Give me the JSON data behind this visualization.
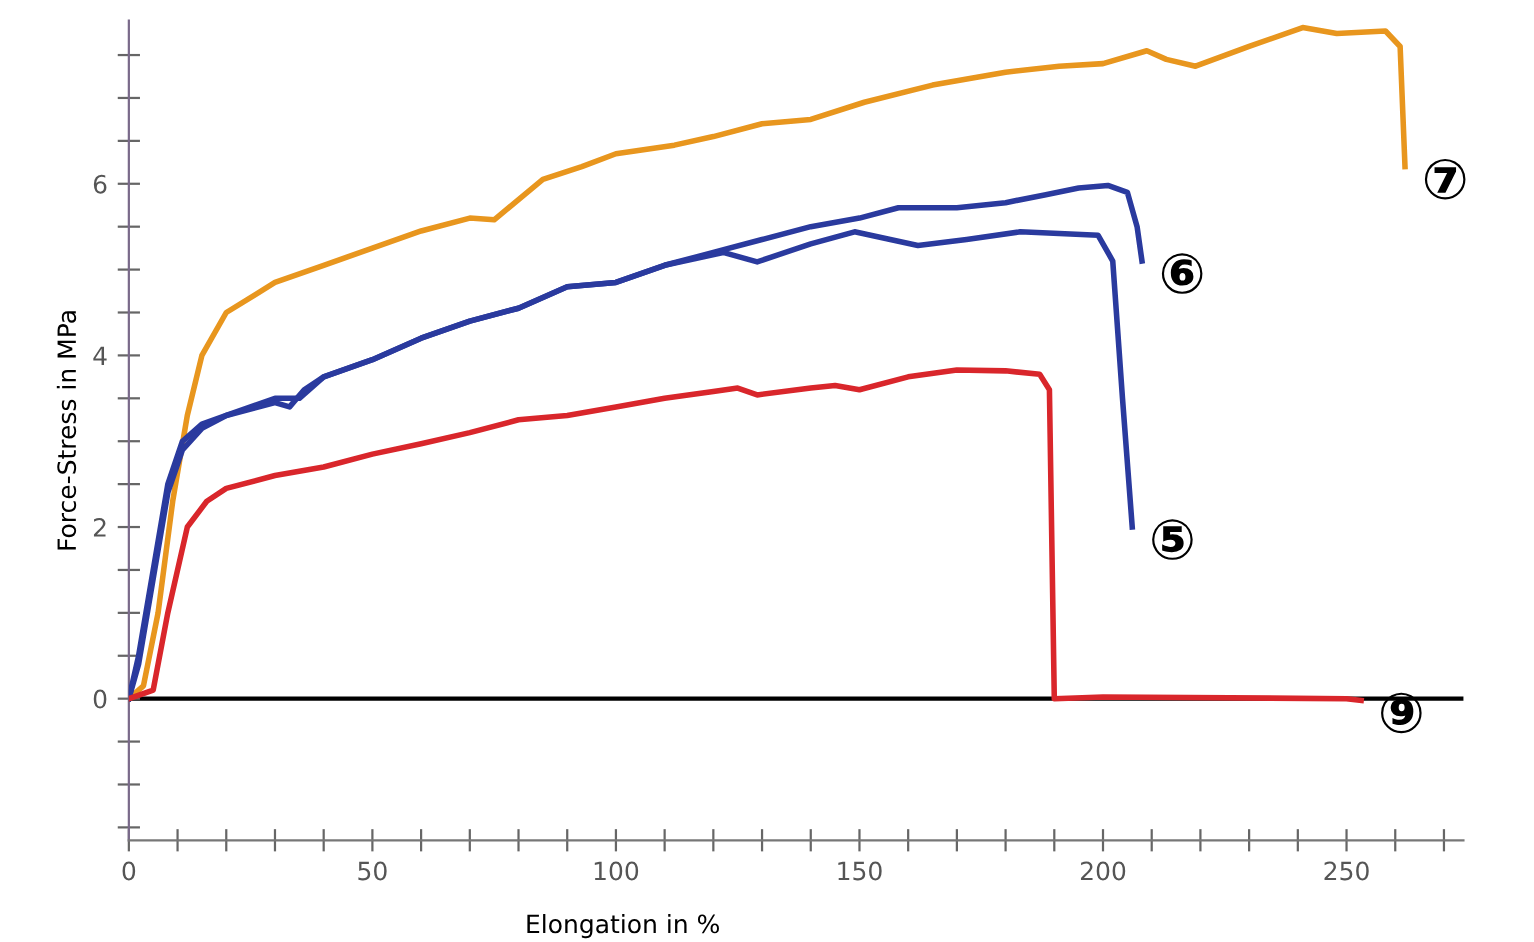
{
  "chart_data": {
    "type": "line",
    "xlabel": "Elongation in %",
    "ylabel": "Force-Stress in MPa",
    "xlim": [
      0,
      274
    ],
    "ylim": [
      -1.65,
      7.9
    ],
    "xticks": [
      0,
      {
        "value": 10,
        "label": null
      },
      {
        "value": 20,
        "label": null
      },
      {
        "value": 30,
        "label": null
      },
      {
        "value": 40,
        "label": null
      },
      50,
      {
        "value": 60,
        "label": null
      },
      {
        "value": 70,
        "label": null
      },
      {
        "value": 80,
        "label": null
      },
      {
        "value": 90,
        "label": null
      },
      100,
      {
        "value": 110,
        "label": null
      },
      {
        "value": 120,
        "label": null
      },
      {
        "value": 130,
        "label": null
      },
      {
        "value": 140,
        "label": null
      },
      150,
      {
        "value": 160,
        "label": null
      },
      {
        "value": 170,
        "label": null
      },
      {
        "value": 180,
        "label": null
      },
      {
        "value": 190,
        "label": null
      },
      200,
      {
        "value": 210,
        "label": null
      },
      {
        "value": 220,
        "label": null
      },
      {
        "value": 230,
        "label": null
      },
      {
        "value": 240,
        "label": null
      },
      250,
      {
        "value": 260,
        "label": null
      },
      {
        "value": 270,
        "label": null
      }
    ],
    "yticks": [
      {
        "value": -1.5,
        "label": null
      },
      {
        "value": -1,
        "label": null
      },
      {
        "value": -0.5,
        "label": null
      },
      0,
      {
        "value": 0.5,
        "label": null
      },
      {
        "value": 1,
        "label": null
      },
      {
        "value": 1.5,
        "label": null
      },
      2,
      {
        "value": 2.5,
        "label": null
      },
      {
        "value": 3,
        "label": null
      },
      {
        "value": 3.5,
        "label": null
      },
      4,
      {
        "value": 4.5,
        "label": null
      },
      {
        "value": 5,
        "label": null
      },
      {
        "value": 5.5,
        "label": null
      },
      6,
      {
        "value": 6.5,
        "label": null
      },
      {
        "value": 7,
        "label": null
      },
      {
        "value": 7.5,
        "label": null
      }
    ],
    "grid": false,
    "legend": false,
    "marker": "none",
    "line_style": "solid",
    "ref_lines": [
      {
        "axis": "y",
        "value": 0,
        "color": "#000000"
      }
    ],
    "series": [
      {
        "name": "⑦",
        "color": "#e8961e",
        "x": [
          0,
          3,
          6,
          9,
          12,
          15,
          20,
          30,
          40,
          50,
          60,
          70,
          75,
          85,
          93,
          100,
          112,
          120,
          130,
          140,
          151,
          165,
          180,
          191,
          200,
          209,
          213,
          219,
          230,
          241,
          248,
          258,
          261,
          262
        ],
        "values": [
          0,
          0.15,
          1.0,
          2.3,
          3.3,
          4.0,
          4.5,
          4.85,
          5.05,
          5.25,
          5.45,
          5.6,
          5.58,
          6.05,
          6.2,
          6.35,
          6.45,
          6.55,
          6.7,
          6.75,
          6.95,
          7.15,
          7.3,
          7.37,
          7.4,
          7.55,
          7.45,
          7.37,
          7.6,
          7.82,
          7.75,
          7.78,
          7.6,
          6.2
        ]
      },
      {
        "name": "⑥",
        "color": "#2a3a9e",
        "x": [
          0,
          2,
          5,
          8,
          11,
          15,
          20,
          30,
          35,
          40,
          50,
          60,
          70,
          80,
          90,
          100,
          110,
          120,
          130,
          140,
          150,
          158,
          170,
          180,
          188,
          195,
          201,
          205,
          207,
          208
        ],
        "values": [
          0,
          0.5,
          1.5,
          2.5,
          3.0,
          3.2,
          3.3,
          3.5,
          3.5,
          3.75,
          3.95,
          4.2,
          4.4,
          4.55,
          4.8,
          4.85,
          5.05,
          5.2,
          5.35,
          5.5,
          5.6,
          5.72,
          5.72,
          5.78,
          5.87,
          5.95,
          5.98,
          5.9,
          5.5,
          5.1
        ]
      },
      {
        "name": "⑤",
        "color": "#2a3a9e",
        "x": [
          0,
          2,
          5,
          8,
          11,
          15,
          20,
          30,
          33,
          36,
          40,
          50,
          60,
          70,
          80,
          90,
          100,
          110,
          122,
          129,
          140,
          149,
          162,
          172,
          183,
          199,
          202,
          204,
          206
        ],
        "values": [
          0,
          0.4,
          1.4,
          2.4,
          2.9,
          3.15,
          3.3,
          3.45,
          3.4,
          3.6,
          3.75,
          3.95,
          4.2,
          4.4,
          4.55,
          4.8,
          4.85,
          5.05,
          5.2,
          5.09,
          5.3,
          5.44,
          5.28,
          5.35,
          5.44,
          5.4,
          5.1,
          3.5,
          2.0
        ]
      },
      {
        "name": "⑨",
        "color": "#d9262b",
        "x": [
          0,
          5,
          8,
          12,
          16,
          20,
          30,
          40,
          50,
          60,
          70,
          80,
          90,
          100,
          110,
          120,
          125,
          129,
          140,
          145,
          150,
          160,
          170,
          180,
          187,
          189,
          190,
          200,
          250,
          253
        ],
        "values": [
          0,
          0.1,
          1.0,
          2.0,
          2.3,
          2.45,
          2.6,
          2.7,
          2.85,
          2.97,
          3.1,
          3.25,
          3.3,
          3.4,
          3.5,
          3.58,
          3.62,
          3.54,
          3.62,
          3.65,
          3.6,
          3.75,
          3.83,
          3.82,
          3.78,
          3.6,
          0,
          0.02,
          0,
          -0.02
        ]
      }
    ]
  }
}
